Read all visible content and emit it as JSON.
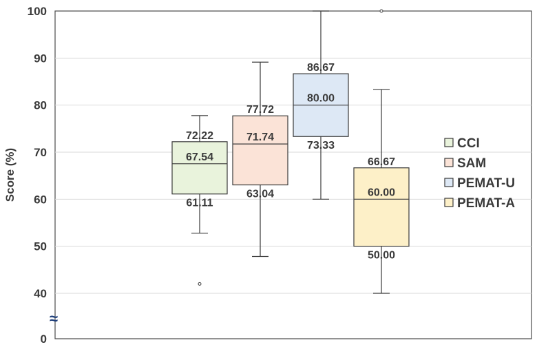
{
  "chart_data": {
    "type": "boxplot",
    "ylabel": "Score (%)",
    "ylim": [
      0,
      100
    ],
    "axis_break": {
      "from": 0,
      "to": 40,
      "symbol": "≈"
    },
    "y_ticks": [
      0,
      40,
      50,
      60,
      70,
      80,
      90,
      100
    ],
    "grid": true,
    "legend_position": "right",
    "series": [
      {
        "name": "CCI",
        "color": "#e9f3dc",
        "whisker_low": 52.78,
        "q1": 61.11,
        "median": 67.54,
        "q3": 72.22,
        "whisker_high": 77.78,
        "outliers": [
          42.0
        ],
        "labels": {
          "q3": "72.22",
          "median": "67.54",
          "q1": "61.11"
        }
      },
      {
        "name": "SAM",
        "color": "#fbe3d7",
        "whisker_low": 47.83,
        "q1": 63.04,
        "median": 71.74,
        "q3": 77.72,
        "whisker_high": 89.13,
        "outliers": [],
        "labels": {
          "q3": "77.72",
          "median": "71.74",
          "q1": "63.04"
        }
      },
      {
        "name": "PEMAT-U",
        "color": "#dde8f5",
        "whisker_low": 60.0,
        "q1": 73.33,
        "median": 80.0,
        "q3": 86.67,
        "whisker_high": 100.0,
        "outliers": [],
        "labels": {
          "q3": "86.67",
          "median": "80.00",
          "q1": "73.33"
        }
      },
      {
        "name": "PEMAT-A",
        "color": "#fdf0c8",
        "whisker_low": 40.0,
        "q1": 50.0,
        "median": 60.0,
        "q3": 66.67,
        "whisker_high": 83.33,
        "outliers": [
          100.0
        ],
        "labels": {
          "q3": "66.67",
          "median": "60.00",
          "q1": "50.00"
        }
      }
    ]
  }
}
